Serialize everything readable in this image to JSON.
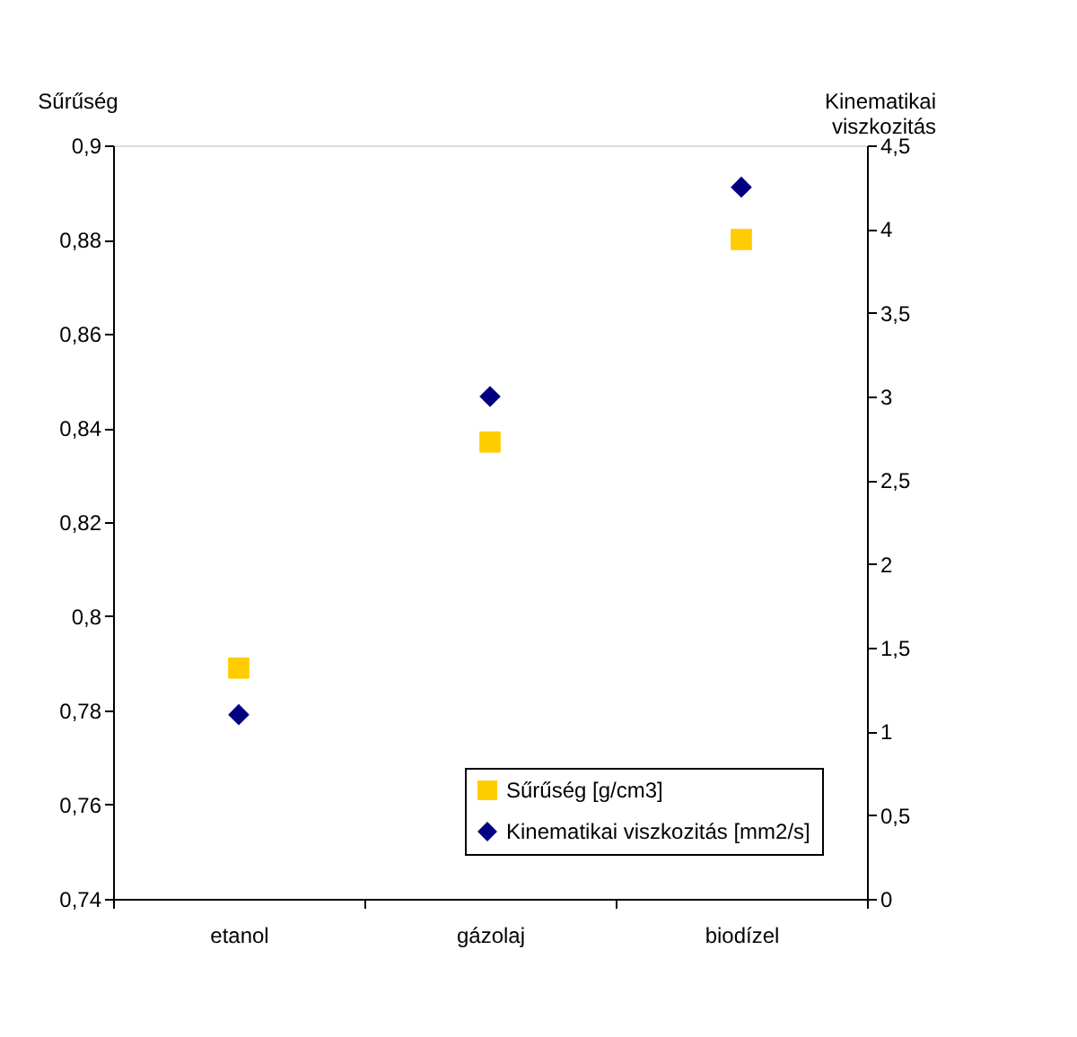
{
  "chart_data": {
    "type": "scatter",
    "ylabel": "Sűrűség",
    "y2label": "Kinematikai viszkozitás",
    "categories": [
      "etanol",
      "gázolaj",
      "biodízel"
    ],
    "series": [
      {
        "name": "Sűrűség [g/cm3]",
        "color": "#ffcc00",
        "marker": "square",
        "values": [
          0.789,
          0.837,
          0.88
        ]
      },
      {
        "name": "Kinematikai viszkozitás [mm2/s]",
        "color": "#000080",
        "marker": "diamond",
        "axis": "y2",
        "values": [
          1.1,
          3.0,
          4.25
        ]
      }
    ],
    "ylim": [
      0.74,
      0.9
    ],
    "yticks": [
      {
        "value": 0.74,
        "label": "0,74"
      },
      {
        "value": 0.76,
        "label": "0,76"
      },
      {
        "value": 0.78,
        "label": "0,78"
      },
      {
        "value": 0.8,
        "label": "0,8"
      },
      {
        "value": 0.82,
        "label": "0,82"
      },
      {
        "value": 0.84,
        "label": "0,84"
      },
      {
        "value": 0.86,
        "label": "0,86"
      },
      {
        "value": 0.88,
        "label": "0,88"
      },
      {
        "value": 0.9,
        "label": "0,9"
      }
    ],
    "y2lim": [
      0,
      4.5
    ],
    "y2ticks": [
      0,
      {
        "value": 0.5,
        "label": "0,5"
      },
      1,
      {
        "value": 1.5,
        "label": "1,5"
      },
      2,
      {
        "value": 2.5,
        "label": "2,5"
      },
      3,
      {
        "value": 3.5,
        "label": "3,5"
      },
      4,
      {
        "value": 4.5,
        "label": "4,5"
      }
    ],
    "grid": false,
    "legend": "bottom right"
  }
}
